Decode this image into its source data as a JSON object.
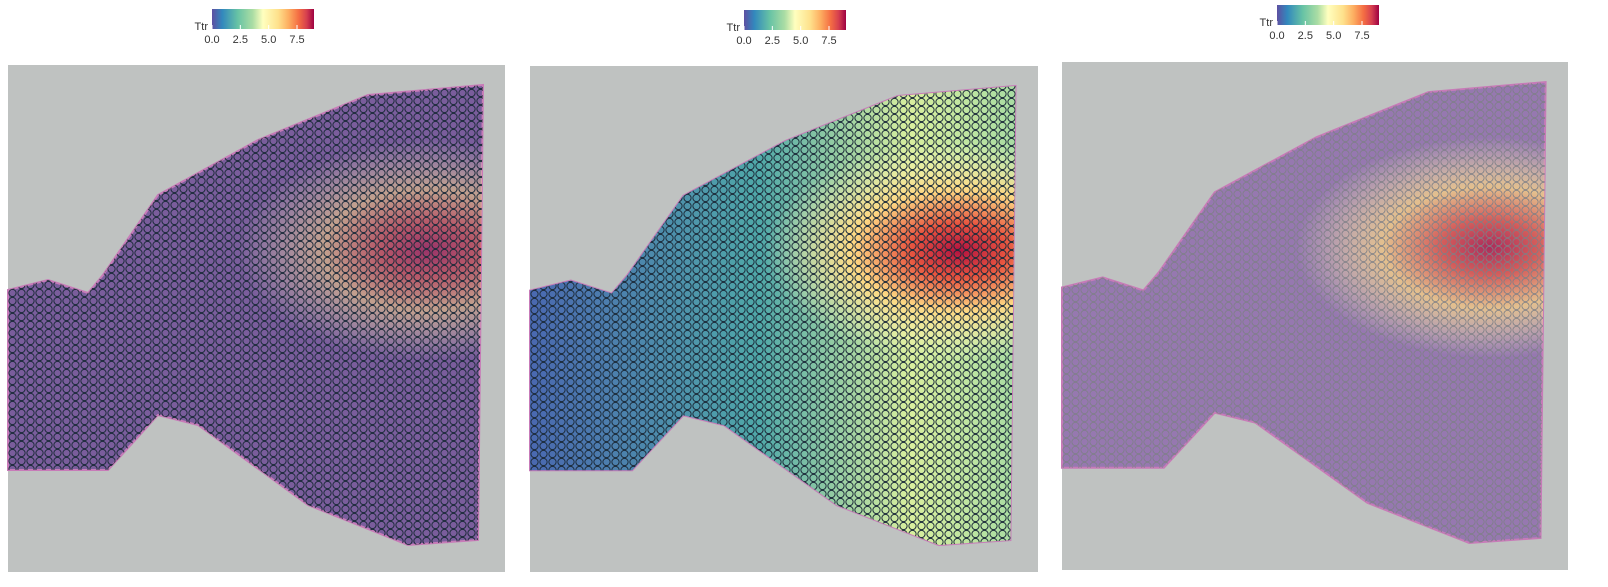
{
  "panels": [
    {
      "legend": {
        "title": "Ttr",
        "lim": [
          0,
          9.0
        ],
        "ticks": [
          {
            "value": 0,
            "label": "0.0"
          },
          {
            "value": 2.5,
            "label": "2.5"
          },
          {
            "value": 5,
            "label": "5.0"
          },
          {
            "value": 7.5,
            "label": "7.5"
          }
        ]
      }
    },
    {
      "legend": {
        "title": "Ttr",
        "lim": [
          0,
          9.0
        ],
        "ticks": [
          {
            "value": 0,
            "label": "0.0"
          },
          {
            "value": 2.5,
            "label": "2.5"
          },
          {
            "value": 5,
            "label": "5.0"
          },
          {
            "value": 7.5,
            "label": "7.5"
          }
        ]
      }
    },
    {
      "legend": {
        "title": "Ttr",
        "lim": [
          0,
          9.0
        ],
        "ticks": [
          {
            "value": 0,
            "label": "0.0"
          },
          {
            "value": 2.5,
            "label": "2.5"
          },
          {
            "value": 5,
            "label": "5.0"
          },
          {
            "value": 7.5,
            "label": "7.5"
          }
        ]
      }
    }
  ]
}
